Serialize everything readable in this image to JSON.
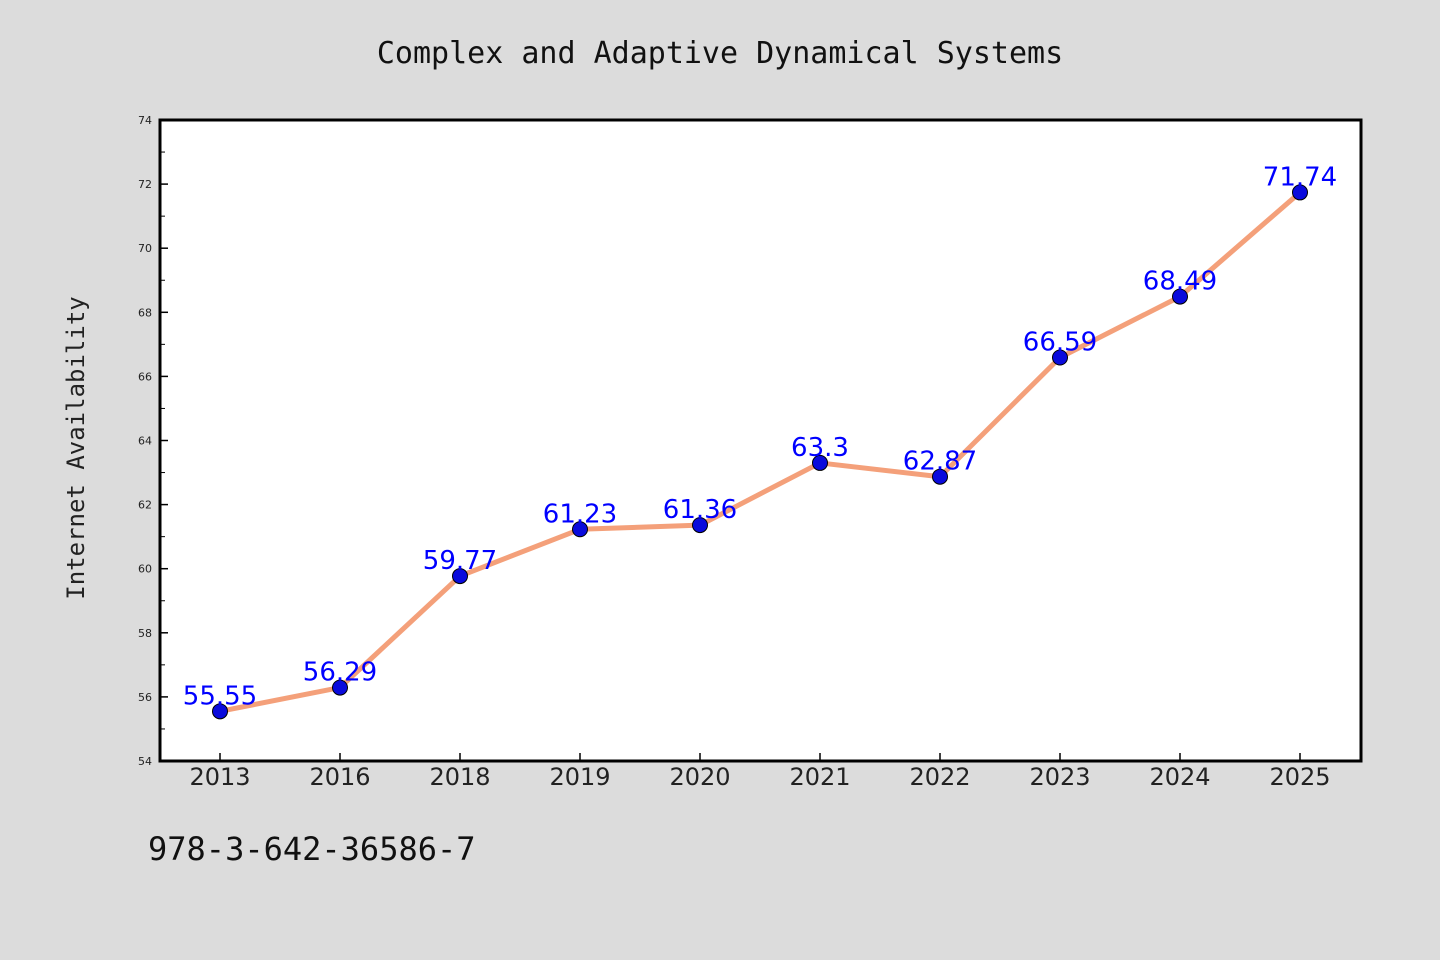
{
  "footer_text": "978-3-642-36586-7",
  "chart_data": {
    "type": "line",
    "title": "Complex and Adaptive Dynamical Systems",
    "xlabel": "",
    "ylabel": "Internet Availability",
    "categories": [
      "2013",
      "2016",
      "2018",
      "2019",
      "2020",
      "2021",
      "2022",
      "2023",
      "2024",
      "2025"
    ],
    "series": [
      {
        "values": [
          55.55,
          56.29,
          59.77,
          61.23,
          61.36,
          63.3,
          62.87,
          66.59,
          68.49,
          71.74
        ]
      }
    ],
    "data_labels": [
      "55.55",
      "56.29",
      "59.77",
      "61.23",
      "61.36",
      "63.3",
      "62.87",
      "66.59",
      "68.49",
      "71.74"
    ],
    "ylim": [
      54,
      74
    ],
    "yticks": [
      54,
      56,
      58,
      60,
      62,
      64,
      66,
      68,
      70,
      72,
      74
    ],
    "grid": false,
    "colors": {
      "line": "#f4a07a",
      "marker": "#0a0adc",
      "label": "#0000ff",
      "background": "#dcdcdc",
      "plot": "#ffffff"
    }
  }
}
